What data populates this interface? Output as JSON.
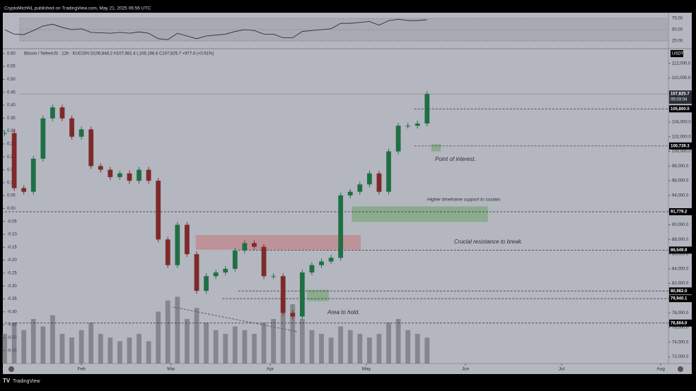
{
  "header": {
    "published": "CryptoMichNL published on TradingView.com, May 21, 2025 06:56 UTC"
  },
  "footer": {
    "brand": "TradingView"
  },
  "chart_data": {
    "type": "candlestick",
    "legend": "Bitcoin / TetherUS · 12h · KUCOIN  O106,848.2 H107,981.4 L106,196.8 C107,825.7 +977.6 (+0.91%)",
    "currency": "USDT",
    "up_color": "#1f6f45",
    "down_color": "#7e2a2a",
    "x": [
      7,
      10,
      13,
      16,
      19,
      22,
      25,
      28,
      31,
      34,
      37,
      40,
      43,
      46,
      49,
      52,
      55,
      58,
      61,
      64,
      67,
      70,
      73,
      76,
      79,
      82,
      85,
      88,
      91,
      94,
      97,
      100,
      103,
      106,
      109,
      112,
      115,
      118,
      121,
      124,
      127,
      130,
      133,
      136,
      139
    ],
    "close": [
      102500,
      95000,
      94500,
      99000,
      104500,
      106000,
      104500,
      102000,
      103000,
      98000,
      97500,
      96500,
      97000,
      96000,
      97500,
      96000,
      88000,
      84500,
      90000,
      86000,
      81000,
      83000,
      83500,
      84000,
      86500,
      87500,
      87000,
      83000,
      83000,
      78000,
      77500,
      83500,
      84500,
      85000,
      85500,
      94000,
      94500,
      95500,
      97000,
      94500,
      100000,
      103500,
      103500,
      103800,
      107825.7
    ],
    "volume": [
      40,
      55,
      45,
      60,
      50,
      65,
      40,
      35,
      45,
      55,
      40,
      35,
      30,
      35,
      40,
      30,
      70,
      85,
      90,
      60,
      75,
      55,
      45,
      40,
      50,
      45,
      40,
      55,
      60,
      95,
      80,
      60,
      45,
      40,
      35,
      50,
      45,
      40,
      35,
      40,
      55,
      60,
      45,
      40,
      35
    ],
    "rsi": [
      50,
      40,
      39,
      48,
      58,
      62,
      55,
      50,
      52,
      44,
      43,
      42,
      44,
      42,
      45,
      42,
      30,
      28,
      42,
      36,
      30,
      36,
      38,
      40,
      46,
      50,
      48,
      40,
      40,
      32,
      32,
      46,
      48,
      50,
      52,
      64,
      64,
      66,
      68,
      60,
      70,
      73,
      70,
      70,
      72
    ],
    "xlim": [
      6,
      214.4
    ],
    "xticks": [
      {
        "value": 31,
        "label": "Feb"
      },
      {
        "value": 59,
        "label": "Mar"
      },
      {
        "value": 90,
        "label": "Apr"
      },
      {
        "value": 120,
        "label": "May"
      },
      {
        "value": 151,
        "label": "Jun"
      },
      {
        "value": 181,
        "label": "Jul"
      },
      {
        "value": 212,
        "label": "Aug"
      }
    ],
    "ylim": [
      71100,
      113900
    ],
    "yticks": [
      {
        "value": 112000,
        "label": "112,000.0"
      },
      {
        "value": 110000,
        "label": "110,000.0"
      },
      {
        "value": 108000,
        "label": "108,000.0"
      },
      {
        "value": 106000,
        "label": "106,000.0"
      },
      {
        "value": 104000,
        "label": "104,000.0"
      },
      {
        "value": 102000,
        "label": "102,000.0"
      },
      {
        "value": 100000,
        "label": "100,000.0"
      },
      {
        "value": 98000,
        "label": "98,000.0"
      },
      {
        "value": 96000,
        "label": "96,000.0"
      },
      {
        "value": 94000,
        "label": "94,000.0"
      },
      {
        "value": 92000,
        "label": "92,000.0"
      },
      {
        "value": 90000,
        "label": "90,000.0"
      },
      {
        "value": 88000,
        "label": "88,000.0"
      },
      {
        "value": 86000,
        "label": "86,000.0"
      },
      {
        "value": 84000,
        "label": "84,000.0"
      },
      {
        "value": 82000,
        "label": "82,000.0"
      },
      {
        "value": 80000,
        "label": "80,000.0"
      },
      {
        "value": 78000,
        "label": "78,000.0"
      },
      {
        "value": 76000,
        "label": "76,000.0"
      },
      {
        "value": 74000,
        "label": "74,000.0"
      },
      {
        "value": 72000,
        "label": "72,000.0"
      }
    ],
    "y2lim": [
      -0.6,
      0.616
    ],
    "y2ticks": [
      {
        "value": 0.6,
        "label": "0.60"
      },
      {
        "value": 0.55,
        "label": "0.55"
      },
      {
        "value": 0.5,
        "label": "0.50"
      },
      {
        "value": 0.45,
        "label": "0.45"
      },
      {
        "value": 0.4,
        "label": "0.40"
      },
      {
        "value": 0.35,
        "label": "0.35"
      },
      {
        "value": 0.3,
        "label": "0.30"
      },
      {
        "value": 0.25,
        "label": "0.25"
      },
      {
        "value": 0.2,
        "label": "0.20"
      },
      {
        "value": 0.15,
        "label": "0.15"
      },
      {
        "value": 0.1,
        "label": "0.10"
      },
      {
        "value": 0.05,
        "label": "0.05"
      },
      {
        "value": 0,
        "label": "0.00"
      },
      {
        "value": -0.05,
        "label": "-0.05"
      },
      {
        "value": -0.1,
        "label": "-0.10"
      },
      {
        "value": -0.15,
        "label": "-0.15"
      },
      {
        "value": -0.2,
        "label": "-0.20"
      },
      {
        "value": -0.25,
        "label": "-0.25"
      },
      {
        "value": -0.3,
        "label": "-0.30"
      },
      {
        "value": -0.35,
        "label": "-0.35"
      },
      {
        "value": -0.4,
        "label": "-0.40"
      },
      {
        "value": -0.45,
        "label": "-0.45"
      },
      {
        "value": -0.5,
        "label": "-0.50"
      },
      {
        "value": -0.55,
        "label": "-0.55"
      }
    ],
    "rsi_lim": [
      9.4,
      87.5
    ],
    "rsi_ticks": [
      {
        "value": 75,
        "label": "75.00"
      },
      {
        "value": 50,
        "label": "50.00"
      },
      {
        "value": 25,
        "label": "25.00"
      }
    ],
    "current": {
      "value": 107825.7,
      "label": "107,825.7",
      "countdown": "05:03:04"
    },
    "price_levels": [
      {
        "value": 105800,
        "label": "105,800.0"
      },
      {
        "value": 100739.3,
        "label": "100,739.3"
      },
      {
        "value": 91779.2,
        "label": "91,779.2"
      },
      {
        "value": 86549.9,
        "label": "86,549.9"
      },
      {
        "value": 80982,
        "label": "80,982.0"
      },
      {
        "value": 79940.1,
        "label": "79,940.1"
      },
      {
        "value": 76604,
        "label": "76,604.0"
      }
    ],
    "zones": [
      {
        "start": 115.5,
        "end": 158,
        "low": 90400,
        "high": 92500,
        "color": "#7fa882"
      },
      {
        "start": 66.7,
        "end": 118.3,
        "low": 86600,
        "high": 88600,
        "color": "#c08890"
      },
      {
        "start": 140.3,
        "end": 143.3,
        "low": 100000,
        "high": 101000,
        "color": "#7fa882"
      },
      {
        "start": 101.5,
        "end": 108.3,
        "low": 79600,
        "high": 81150,
        "color": "#7fa882"
      }
    ],
    "annotations": [
      "Point of interest.",
      "Higher timeframe support to sustain.",
      "Crucial resistance to break.",
      "Area to hold."
    ]
  }
}
